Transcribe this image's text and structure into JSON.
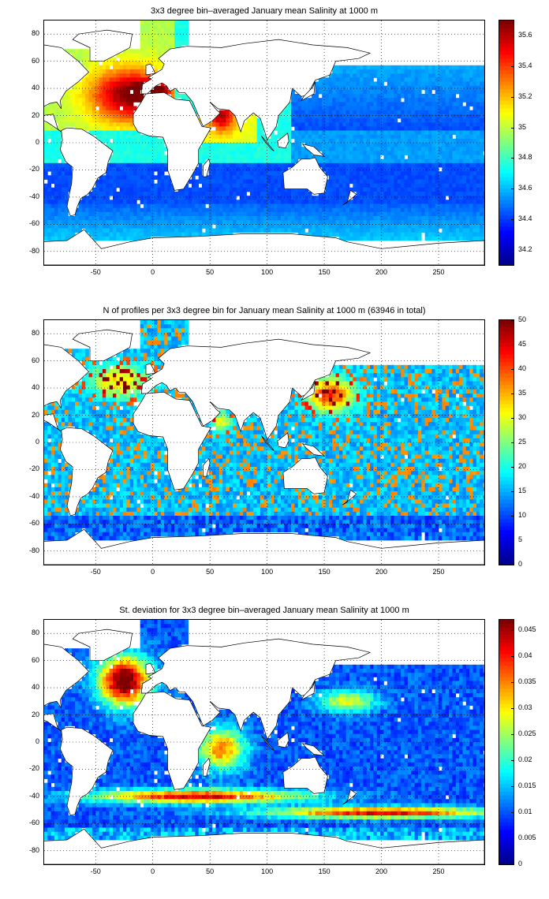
{
  "colors": {
    "jet": [
      "#00008f",
      "#0000ff",
      "#007fff",
      "#00ffff",
      "#7fff7f",
      "#ffff00",
      "#ff7f00",
      "#ff0000",
      "#7f0000"
    ],
    "land_outline": "#000000",
    "grid": "#000000"
  },
  "chart_data": [
    {
      "type": "heatmap",
      "title": "3x3 degree bin–averaged January mean Salinity at 1000 m",
      "xlim": [
        -95,
        290
      ],
      "ylim": [
        -90,
        90
      ],
      "xticks": [
        -50,
        0,
        50,
        100,
        150,
        200,
        250
      ],
      "yticks": [
        80,
        60,
        40,
        20,
        0,
        -20,
        -40,
        -60,
        -80
      ],
      "grid": true,
      "colorbar": {
        "range": [
          34.1,
          35.7
        ],
        "ticks": [
          35.6,
          35.4,
          35.2,
          35,
          34.8,
          34.6,
          34.4,
          34.2
        ]
      },
      "field": "salinity"
    },
    {
      "type": "heatmap",
      "title": "N of profiles per 3x3 degree bin for January mean Salinity at 1000 m (63946 in total)",
      "xlim": [
        -95,
        290
      ],
      "ylim": [
        -90,
        90
      ],
      "xticks": [
        -50,
        0,
        50,
        100,
        150,
        200,
        250
      ],
      "yticks": [
        80,
        60,
        40,
        20,
        0,
        -20,
        -40,
        -60,
        -80
      ],
      "grid": true,
      "colorbar": {
        "range": [
          0,
          50
        ],
        "ticks": [
          50,
          45,
          40,
          35,
          30,
          25,
          20,
          15,
          10,
          5,
          0
        ]
      },
      "field": "count"
    },
    {
      "type": "heatmap",
      "title": "St. deviation for 3x3 degree bin–averaged January mean Salinity at 1000 m",
      "xlim": [
        -95,
        290
      ],
      "ylim": [
        -90,
        90
      ],
      "xticks": [
        -50,
        0,
        50,
        100,
        150,
        200,
        250
      ],
      "yticks": [
        80,
        60,
        40,
        20,
        0,
        -20,
        -40,
        -60,
        -80
      ],
      "grid": true,
      "colorbar": {
        "range": [
          0,
          0.047
        ],
        "ticks": [
          0.045,
          0.04,
          0.035,
          0.03,
          0.025,
          0.02,
          0.015,
          0.01,
          0.005,
          0
        ]
      },
      "field": "stdev"
    }
  ]
}
